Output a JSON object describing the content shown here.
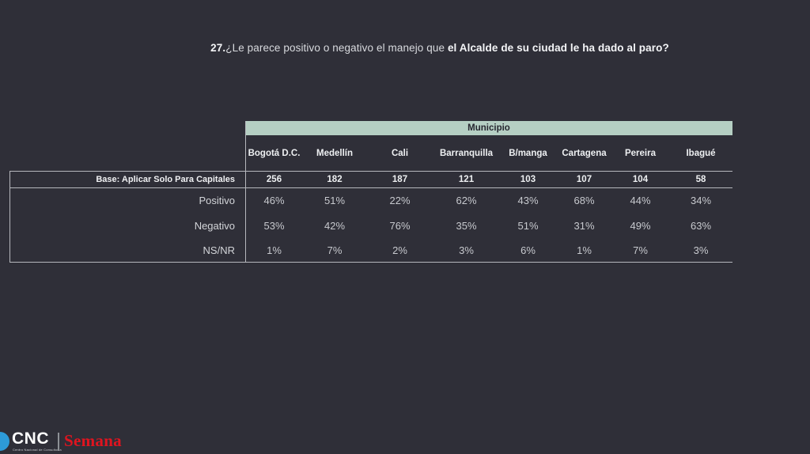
{
  "slide": {
    "title": {
      "number": "27.",
      "regular": "¿Le parece positivo o negativo el manejo que ",
      "bold": "el Alcalde de su ciudad le ha dado al paro?"
    },
    "table": {
      "group_header": "Municipio",
      "columns": [
        "Bogotá D.C.",
        "Medellín",
        "Cali",
        "Barranquilla",
        "B/manga",
        "Cartagena",
        "Pereira",
        "Ibagué"
      ],
      "base_label": "Base: Aplicar Solo Para Capitales",
      "base_values": [
        "256",
        "182",
        "187",
        "121",
        "103",
        "107",
        "104",
        "58"
      ],
      "rows": [
        {
          "label": "Positivo",
          "values": [
            "46%",
            "51%",
            "22%",
            "62%",
            "43%",
            "68%",
            "44%",
            "34%"
          ]
        },
        {
          "label": "Negativo",
          "values": [
            "53%",
            "42%",
            "76%",
            "35%",
            "51%",
            "31%",
            "49%",
            "63%"
          ]
        },
        {
          "label": "NS/NR",
          "values": [
            "1%",
            "7%",
            "2%",
            "3%",
            "6%",
            "1%",
            "7%",
            "3%"
          ]
        }
      ]
    },
    "footer": {
      "cnc": "CNC",
      "cnc_tagline": "Centro Nacional de Consultoría",
      "semana": "Semana"
    },
    "colors": {
      "background": "#2f2f38",
      "band_green": "#b5cfc3",
      "band_text": "#272730",
      "line_gray": "#b6b8bd",
      "cnc_blue": "#2d9bd8",
      "semana_red": "#e0141f"
    }
  },
  "chart_data": {
    "type": "table",
    "title": "27.¿Le parece positivo o negativo el manejo que el Alcalde de su ciudad le ha dado al paro?",
    "group_header": "Municipio",
    "categories": [
      "Bogotá D.C.",
      "Medellín",
      "Cali",
      "Barranquilla",
      "B/manga",
      "Cartagena",
      "Pereira",
      "Ibagué"
    ],
    "base_label": "Base: Aplicar Solo Para Capitales",
    "base": [
      256,
      182,
      187,
      121,
      103,
      107,
      104,
      58
    ],
    "series": [
      {
        "name": "Positivo",
        "unit": "%",
        "values": [
          46,
          51,
          22,
          62,
          43,
          68,
          44,
          34
        ]
      },
      {
        "name": "Negativo",
        "unit": "%",
        "values": [
          53,
          42,
          76,
          35,
          51,
          31,
          49,
          63
        ]
      },
      {
        "name": "NS/NR",
        "unit": "%",
        "values": [
          1,
          7,
          2,
          3,
          6,
          1,
          7,
          3
        ]
      }
    ]
  }
}
